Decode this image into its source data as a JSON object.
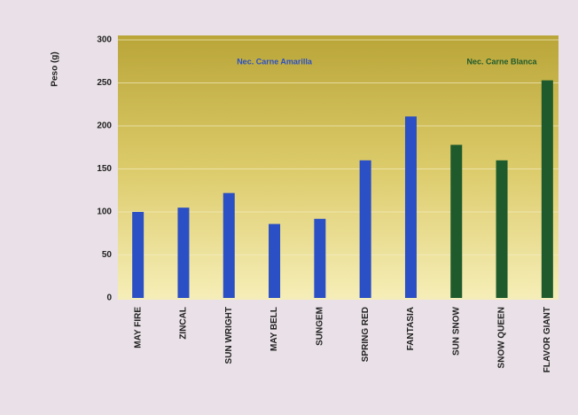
{
  "chart_data": {
    "type": "bar",
    "y_label": "Peso (g)",
    "categories": [
      "MAY FIRE",
      "ZINCAL",
      "SUN WRIGHT",
      "MAY BELL",
      "SUNGEM",
      "SPRING RED",
      "FANTASIA",
      "SUN SNOW",
      "SNOW QUEEN",
      "FLAVOR GIANT"
    ],
    "series": [
      {
        "name": "Nec. Carne Amarilla",
        "color": "#2b4fc4",
        "values": [
          100,
          105,
          122,
          86,
          92,
          160,
          211,
          null,
          null,
          null
        ]
      },
      {
        "name": "Nec. Carne Blanca",
        "color": "#1f5a2c",
        "values": [
          null,
          null,
          null,
          null,
          null,
          null,
          null,
          178,
          160,
          253
        ]
      }
    ],
    "ylim": [
      0,
      300
    ],
    "yticks": [
      0,
      50,
      100,
      150,
      200,
      250,
      300
    ],
    "grid": true
  }
}
